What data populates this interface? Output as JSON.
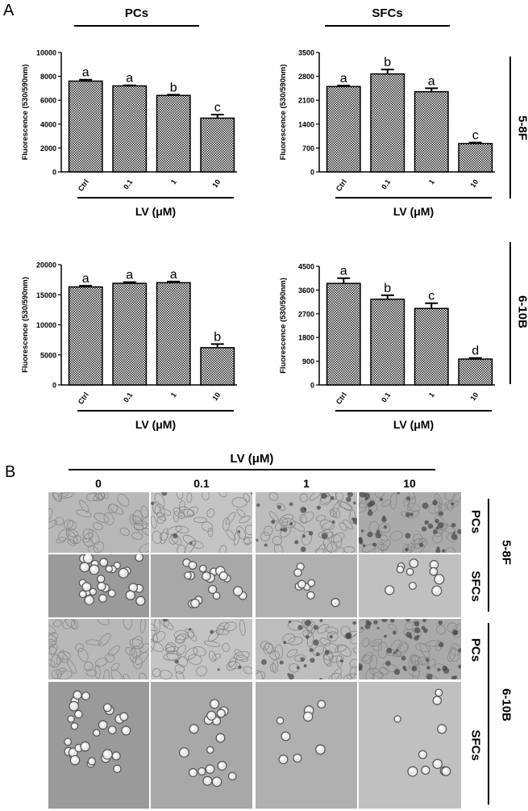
{
  "panel_a_label": "A",
  "panel_b_label": "B",
  "panel_a": {
    "col_headers": [
      "PCs",
      "SFCs"
    ],
    "row_labels": [
      "5-8F",
      "6-10B"
    ]
  },
  "chart_data": [
    {
      "type": "bar",
      "cell_line": "5-8F",
      "group": "PCs",
      "categories": [
        "Ctrl",
        "0.1",
        "1",
        "10"
      ],
      "values": [
        7600,
        7200,
        6400,
        4500
      ],
      "errors": [
        120,
        50,
        60,
        300
      ],
      "letters": [
        "a",
        "a",
        "b",
        "c"
      ],
      "ylabel": "Fluorescence (530/590nm)",
      "xlabel": "LV (μM)",
      "ylim": [
        0,
        10000
      ],
      "yticks": [
        0,
        2000,
        4000,
        6000,
        8000,
        10000
      ],
      "pattern": "checkered"
    },
    {
      "type": "bar",
      "cell_line": "5-8F",
      "group": "SFCs",
      "categories": [
        "Ctrl",
        "0.1",
        "1",
        "10"
      ],
      "values": [
        2500,
        2870,
        2350,
        830
      ],
      "errors": [
        30,
        130,
        100,
        30
      ],
      "letters": [
        "a",
        "b",
        "a",
        "c"
      ],
      "ylabel": "Fluorescence (530/590nm)",
      "xlabel": "LV (μM)",
      "ylim": [
        0,
        3500
      ],
      "yticks": [
        0,
        700,
        1400,
        2100,
        2800,
        3500
      ],
      "pattern": "checkered"
    },
    {
      "type": "bar",
      "cell_line": "6-10B",
      "group": "PCs",
      "categories": [
        "Ctrl",
        "0.1",
        "1",
        "10"
      ],
      "values": [
        16300,
        16900,
        17000,
        6200
      ],
      "errors": [
        200,
        200,
        200,
        600
      ],
      "letters": [
        "a",
        "a",
        "a",
        "b"
      ],
      "ylabel": "Fluorescence (530/590nm)",
      "xlabel": "LV (μM)",
      "ylim": [
        0,
        20000
      ],
      "yticks": [
        0,
        5000,
        10000,
        15000,
        20000
      ],
      "pattern": "checkered"
    },
    {
      "type": "bar",
      "cell_line": "6-10B",
      "group": "SFCs",
      "categories": [
        "Ctrl",
        "0.1",
        "1",
        "10"
      ],
      "values": [
        3850,
        3250,
        2900,
        980
      ],
      "errors": [
        200,
        150,
        200,
        40
      ],
      "letters": [
        "a",
        "b",
        "c",
        "d"
      ],
      "ylabel": "Fluorescence (530/590nm)",
      "xlabel": "LV (μM)",
      "ylim": [
        0,
        4500
      ],
      "yticks": [
        0,
        900,
        1800,
        2700,
        3600,
        4500
      ],
      "pattern": "checkered"
    }
  ],
  "panel_b": {
    "title": "LV (μM)",
    "columns": [
      "0",
      "0.1",
      "1",
      "10"
    ],
    "rows": [
      {
        "cell_type": "PCs",
        "cell_line": "5-8F"
      },
      {
        "cell_type": "SFCs",
        "cell_line": "5-8F"
      },
      {
        "cell_type": "PCs",
        "cell_line": "6-10B"
      },
      {
        "cell_type": "SFCs",
        "cell_line": "6-10B"
      }
    ],
    "cell_lines": [
      "5-8F",
      "6-10B"
    ]
  }
}
